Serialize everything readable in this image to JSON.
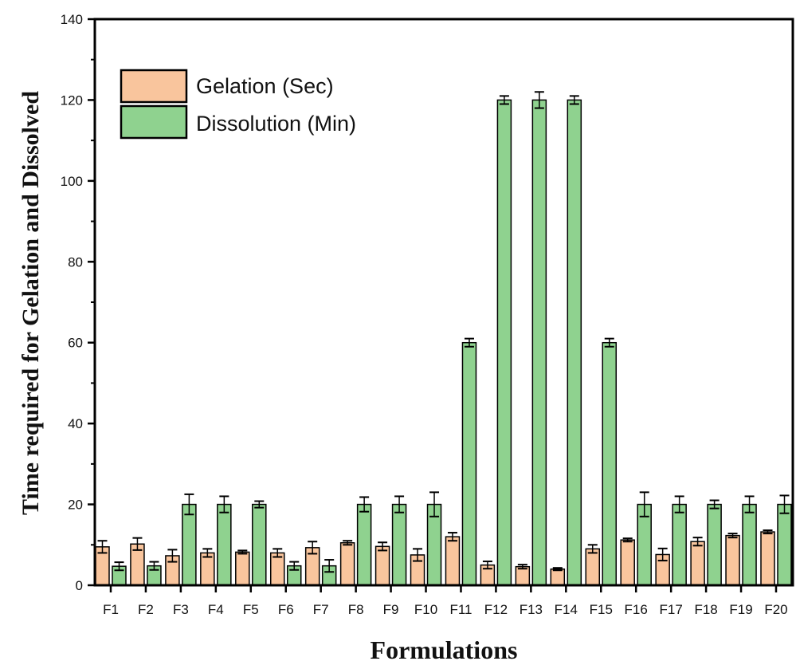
{
  "chart_data": {
    "type": "bar",
    "title": "",
    "xlabel": "Formulations",
    "ylabel": "Time required for Gelation and Dissolved",
    "ylim": [
      0,
      140
    ],
    "yticks": [
      0,
      20,
      40,
      60,
      80,
      100,
      120,
      140
    ],
    "legend_position": "top-left",
    "grid": false,
    "categories": [
      "F1",
      "F2",
      "F3",
      "F4",
      "F5",
      "F6",
      "F7",
      "F8",
      "F9",
      "F10",
      "F11",
      "F12",
      "F13",
      "F14",
      "F15",
      "F16",
      "F17",
      "F18",
      "F19",
      "F20"
    ],
    "series": [
      {
        "name": "Gelation (Sec)",
        "color": "#f9c59d",
        "values": [
          9.5,
          10.2,
          7.3,
          8.0,
          8.2,
          8.0,
          9.3,
          10.5,
          9.6,
          7.5,
          12.0,
          5.0,
          4.6,
          4.0,
          9.0,
          11.2,
          7.6,
          10.8,
          12.3,
          13.2
        ],
        "errors": [
          1.5,
          1.5,
          1.5,
          1.0,
          0.4,
          1.0,
          1.5,
          0.5,
          1.0,
          1.5,
          1.0,
          0.9,
          0.5,
          0.3,
          1.0,
          0.4,
          1.5,
          1.0,
          0.5,
          0.4
        ]
      },
      {
        "name": "Dissolution (Min)",
        "color": "#8fd28f",
        "values": [
          4.7,
          4.8,
          20.0,
          20.0,
          20.0,
          4.8,
          4.8,
          20.0,
          20.0,
          20.0,
          60.0,
          120.0,
          120.0,
          120.0,
          60.0,
          20.0,
          20.0,
          20.0,
          20.0,
          20.0
        ],
        "errors": [
          1.0,
          1.0,
          2.5,
          2.0,
          0.8,
          1.0,
          1.5,
          1.8,
          2.0,
          3.0,
          1.0,
          1.0,
          2.0,
          1.0,
          1.0,
          3.0,
          2.0,
          1.0,
          2.0,
          2.2
        ]
      }
    ]
  }
}
